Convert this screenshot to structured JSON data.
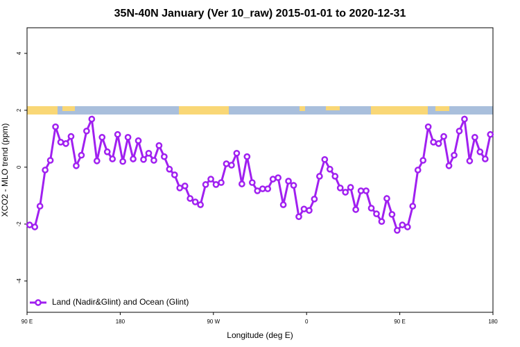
{
  "chart_data": {
    "type": "line",
    "title": "35N-40N January (Ver 10_raw)   2015-01-01 to 2020-12-31",
    "x_label": "Longitude (deg E)",
    "y_label": "XCO2 - MLO trend (ppm)",
    "x": [
      92.5,
      97.5,
      102.5,
      107.5,
      112.5,
      117.5,
      122.5,
      127.5,
      132.5,
      137.5,
      142.5,
      147.5,
      152.5,
      157.5,
      162.5,
      167.5,
      172.5,
      177.5,
      182.5,
      187.5,
      192.5,
      197.5,
      202.5,
      207.5,
      212.5,
      217.5,
      222.5,
      227.5,
      232.5,
      237.5,
      242.5,
      247.5,
      252.5,
      257.5,
      262.5,
      267.5,
      272.5,
      277.5,
      282.5,
      287.5,
      292.5,
      297.5,
      302.5,
      307.5,
      312.5,
      317.5,
      322.5,
      327.5,
      332.5,
      337.5,
      342.5,
      347.5,
      352.5,
      357.5,
      362.5,
      367.5,
      372.5,
      377.5,
      382.5,
      387.5,
      392.5,
      397.5,
      402.5,
      407.5,
      412.5,
      417.5,
      422.5,
      427.5,
      432.5,
      437.5,
      442.5,
      447.5,
      452.5,
      457.5,
      462.5,
      467.5,
      472.5,
      477.5,
      482.5,
      487.5,
      492.5,
      497.5,
      502.5,
      507.5,
      512.5,
      517.5,
      522.5,
      527.5,
      532.5,
      537.5
    ],
    "series": [
      {
        "name": "Land (Nadir&Glint) and Ocean (Glint)",
        "color": "#a020f0",
        "values": [
          -2.03,
          -2.1,
          -1.37,
          -0.1,
          0.24,
          1.42,
          0.88,
          0.83,
          1.08,
          0.05,
          0.42,
          1.27,
          1.69,
          0.22,
          1.05,
          0.54,
          0.29,
          1.15,
          0.2,
          1.05,
          0.29,
          0.93,
          0.27,
          0.49,
          0.24,
          0.76,
          0.37,
          -0.07,
          -0.27,
          -0.73,
          -0.66,
          -1.1,
          -1.22,
          -1.32,
          -0.61,
          -0.42,
          -0.61,
          -0.54,
          0.12,
          0.07,
          0.49,
          -0.59,
          0.37,
          -0.54,
          -0.83,
          -0.76,
          -0.76,
          -0.42,
          -0.37,
          -1.32,
          -0.49,
          -0.64,
          -1.74,
          -1.47,
          -1.52,
          -1.12,
          -0.32,
          0.27,
          -0.07,
          -0.32,
          -0.73,
          -0.88,
          -0.71,
          -1.49,
          -0.83,
          -0.83,
          -1.44,
          -1.64,
          -1.91,
          -1.1,
          -1.66,
          -2.22,
          -2.03,
          -2.1,
          -1.37,
          -0.1,
          0.24,
          1.42,
          0.88,
          0.83,
          1.08,
          0.05,
          0.42,
          1.27,
          1.69,
          0.22,
          1.05,
          0.54,
          0.29,
          1.15
        ]
      }
    ],
    "xlim": [
      90,
      540
    ],
    "xticks": [
      {
        "value": 90,
        "label": "90 E"
      },
      180,
      {
        "value": 270,
        "label": "90 W"
      },
      0,
      {
        "value": 450,
        "label": "90 E"
      },
      {
        "value": 540,
        "label": "180"
      }
    ],
    "ylim": [
      -5.1,
      4.9
    ],
    "yticks": [
      -4,
      -2,
      0,
      2,
      4
    ],
    "legend": "bottom-left"
  }
}
